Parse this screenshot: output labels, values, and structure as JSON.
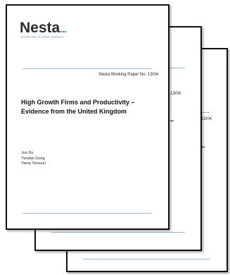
{
  "cover": {
    "logo": "Nesta",
    "logo_dots": "...",
    "series_label": "WORKING PAPER SERIES",
    "paper_number": "Nesta Working Paper No. 13/04",
    "title": "High Growth Firms and Productivity – Evidence from the United Kingdom",
    "authors": [
      "Jun Du",
      "Yundan Gong",
      "Yama Temouri"
    ]
  },
  "back_pages": {
    "page2_number_fragment": "13/04",
    "page3_number_fragment": "13/04"
  },
  "colors": {
    "rule": "#9ab8d8",
    "logo_dots": "#3a7fd0",
    "page_border": "#111111"
  }
}
